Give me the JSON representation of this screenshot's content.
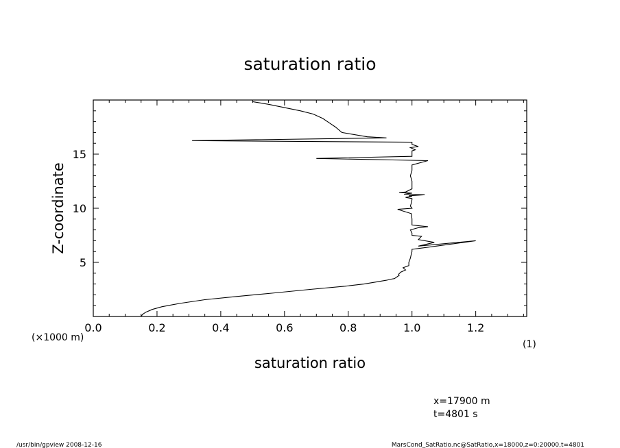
{
  "chart_data": {
    "type": "line",
    "title": "saturation ratio",
    "xlabel": "saturation ratio",
    "ylabel": "Z-coordinate",
    "x_unit": "(1)",
    "y_unit": "(×1000 m)",
    "xlim": [
      0.0,
      1.36
    ],
    "ylim": [
      0,
      20
    ],
    "xticks": [
      "0.0",
      "0.2",
      "0.4",
      "0.6",
      "0.8",
      "1.0",
      "1.2"
    ],
    "yticks": [
      "5",
      "10",
      "15"
    ],
    "grid": false,
    "series": [
      {
        "x": [
          0.15,
          0.155,
          0.165,
          0.185,
          0.215,
          0.27,
          0.35,
          0.45,
          0.56,
          0.68,
          0.79,
          0.85,
          0.89,
          0.92,
          0.935,
          0.945,
          0.95,
          0.955,
          0.96,
          0.958,
          0.965,
          0.98,
          0.972,
          0.99,
          0.99,
          0.995,
          0.998,
          1.0,
          1.0,
          1.05,
          1.2,
          1.02,
          1.07,
          1.02,
          1.03,
          1.0,
          1.0,
          0.995,
          1.02,
          1.05,
          1.0,
          1.0,
          0.998,
          0.955,
          1.0,
          0.995,
          0.998,
          1.0,
          1.0,
          0.98,
          1.0,
          0.99,
          1.04,
          0.975,
          1.0,
          0.96,
          0.98,
          1.0,
          1.0,
          0.995,
          1.0,
          1.0,
          1.05,
          0.7,
          1.0,
          1.0,
          1.0,
          1.0,
          1.01,
          0.995,
          1.02,
          1.0,
          1.0,
          1.0,
          0.31,
          0.92,
          0.86,
          0.78,
          0.76,
          0.74,
          0.72,
          0.69,
          0.65,
          0.6,
          0.55,
          0.5
        ],
        "y": [
          0.0,
          0.2,
          0.4,
          0.65,
          0.9,
          1.2,
          1.55,
          1.85,
          2.15,
          2.5,
          2.8,
          3.0,
          3.2,
          3.35,
          3.45,
          3.5,
          3.6,
          3.7,
          3.8,
          3.9,
          4.1,
          4.3,
          4.5,
          4.7,
          5.0,
          5.4,
          5.8,
          6.0,
          6.2,
          6.4,
          7.0,
          6.5,
          6.85,
          7.1,
          7.4,
          7.5,
          7.7,
          8.0,
          8.2,
          8.3,
          8.45,
          9.0,
          9.5,
          9.9,
          10.0,
          10.2,
          10.5,
          10.8,
          10.9,
          11.0,
          11.1,
          11.15,
          11.25,
          11.3,
          11.4,
          11.45,
          11.5,
          11.8,
          12.5,
          13.0,
          13.5,
          14.0,
          14.4,
          14.6,
          14.8,
          15.0,
          15.2,
          15.3,
          15.4,
          15.6,
          15.7,
          15.9,
          16.0,
          16.1,
          16.25,
          16.5,
          16.6,
          17.0,
          17.5,
          17.9,
          18.3,
          18.7,
          19.0,
          19.3,
          19.6,
          19.85
        ]
      }
    ]
  },
  "footer": {
    "coord_x": "x=17900  m",
    "coord_t": "t=4801  s",
    "program": "/usr/bin/gpview   2008-12-16",
    "source": "MarsCond_SatRatio.nc@SatRatio,x=18000,z=0:20000,t=4801"
  },
  "colors": {
    "line": "#000000",
    "background": "#ffffff"
  }
}
